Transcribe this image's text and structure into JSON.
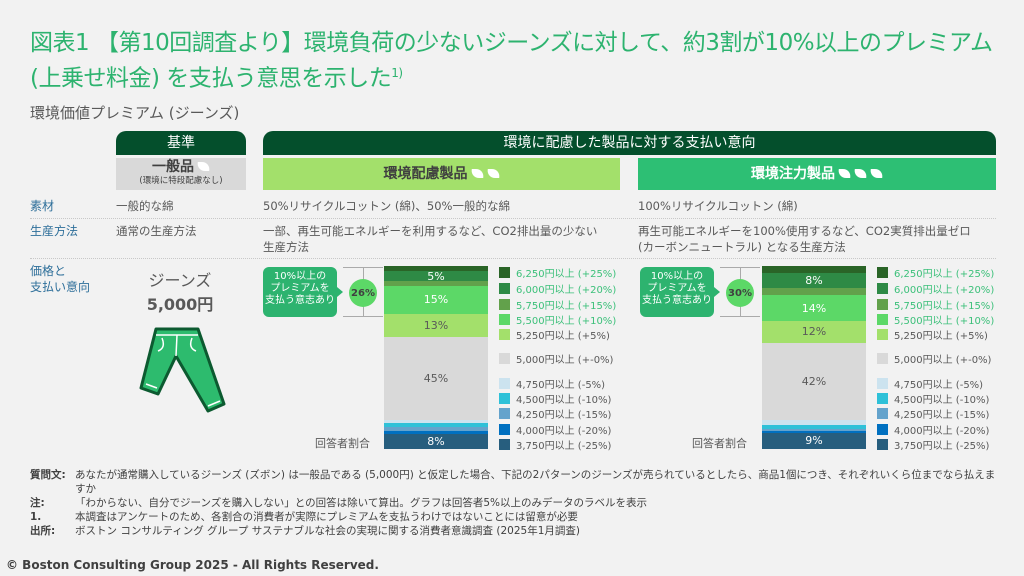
{
  "title": "図表1 【第10回調査より】環境負荷の少ないジーンズに対して、約3割が10%以上のプレミアム (上乗せ料金) を支払う意思を示した",
  "title_sup": "1)",
  "subtitle": "環境価値プレミアム (ジーンズ)",
  "header": {
    "baseline": "基準",
    "eco_group": "環境に配慮した製品に対する支払い意向"
  },
  "columns": [
    {
      "name": "一般品",
      "note": "(環境に特段配慮なし)",
      "leaves": 1,
      "color": "#d9d9d9"
    },
    {
      "name": "環境配慮製品",
      "leaves": 2,
      "color": "#a3e06b"
    },
    {
      "name": "環境注力製品",
      "leaves": 3,
      "color": "#2dbf74"
    }
  ],
  "rows": {
    "material": {
      "label": "素材",
      "values": [
        "一般的な綿",
        "50%リサイクルコットン (綿)、50%一般的な綿",
        "100%リサイクルコットン (綿)"
      ]
    },
    "production": {
      "label": "生産方法",
      "values": [
        "通常の生産方法",
        "一部、再生可能エネルギーを利用するなど、CO2排出量の少ない生産方法",
        "再生可能エネルギーを100%使用するなど、CO2実質排出量ゼロ (カーボンニュートラル) となる生産方法"
      ]
    },
    "price": {
      "label_line1": "価格と",
      "label_line2": "支払い意向"
    }
  },
  "baseline_product": {
    "name": "ジーンズ",
    "price": "5,000円",
    "icon": "jeans-icon"
  },
  "callout": {
    "text_line1": "10%以上の",
    "text_line2": "プレミアムを",
    "text_line3": "支払う意志あり"
  },
  "respondent_label": "回答者割合",
  "chart_data": [
    {
      "type": "bar",
      "stacked": true,
      "product": "環境配慮製品",
      "premium_total": "26%",
      "categories": [
        "6,250円以上 (+25%)",
        "6,000円以上 (+20%)",
        "5,750円以上 (+15%)",
        "5,500円以上 (+10%)",
        "5,250円以上 (+5%)",
        "5,000円以上 (+-0%)",
        "4,750円以上 (-5%)",
        "4,500円以上 (-10%)",
        "4,250円以上 (-15%)",
        "4,000円以上 (-20%)",
        "3,750円以上 (-25%)"
      ],
      "values": [
        3,
        5,
        3,
        15,
        13,
        45,
        2,
        2,
        2,
        2,
        8
      ],
      "ylim": [
        0,
        100
      ]
    },
    {
      "type": "bar",
      "stacked": true,
      "product": "環境注力製品",
      "premium_total": "30%",
      "categories": [
        "6,250円以上 (+25%)",
        "6,000円以上 (+20%)",
        "5,750円以上 (+15%)",
        "5,500円以上 (+10%)",
        "5,250円以上 (+5%)",
        "5,000円以上 (+-0%)",
        "4,750円以上 (-5%)",
        "4,500円以上 (-10%)",
        "4,250円以上 (-15%)",
        "4,000円以上 (-20%)",
        "3,750円以上 (-25%)"
      ],
      "values": [
        4,
        8,
        4,
        14,
        12,
        42,
        3,
        2,
        1,
        1,
        9
      ],
      "ylim": [
        0,
        100
      ]
    }
  ],
  "series_colors": [
    "#2a6427",
    "#2e8a45",
    "#62a14b",
    "#5cd867",
    "#a3e06b",
    "#d9d9d9",
    "#cce3ef",
    "#2ec1d8",
    "#64a3cc",
    "#0070c0",
    "#275e7e"
  ],
  "legend_text_colors": [
    "#3cc07a",
    "#3cc07a",
    "#3cc07a",
    "#3cc07a",
    "#595959",
    "#595959",
    "#595959",
    "#595959",
    "#595959",
    "#595959",
    "#595959"
  ],
  "notes": [
    {
      "label": "質問文:",
      "text": "あなたが通常購入しているジーンズ (ズボン) は一般品である (5,000円) と仮定した場合、下記の2パターンのジーンズが売られているとしたら、商品1個につき、それぞれいくら位までなら払えますか"
    },
    {
      "label": "注:",
      "text": "「わからない、自分でジーンズを購入しない」との回答は除いて算出。グラフは回答者5%以上のみデータのラベルを表示"
    },
    {
      "label": "1.",
      "text": "本調査はアンケートのため、各割合の消費者が実際にプレミアムを支払うわけではないことには留意が必要"
    },
    {
      "label": "出所:",
      "text": "ボストン コンサルティング グループ サステナブルな社会の実現に関する消費者意識調査 (2025年1月調査)"
    }
  ],
  "copyright": "© Boston Consulting Group 2025 - All Rights Reserved."
}
